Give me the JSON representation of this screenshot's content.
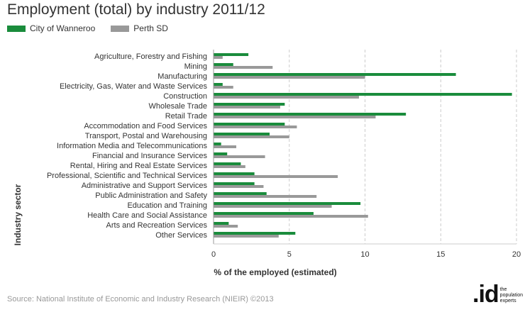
{
  "title": "Employment (total) by industry 2011/12",
  "source": "Source: National Institute of Economic and Industry Research (NIEIR) ©2013",
  "logo": {
    "mark": ".id",
    "text": "the population experts"
  },
  "colors": {
    "series1": "#1a8c3c",
    "series2": "#999999",
    "grid": "#cccccc",
    "axis": "#999999"
  },
  "chart_data": {
    "type": "bar",
    "orientation": "horizontal",
    "title": "Employment (total) by industry 2011/12",
    "xlabel": "% of the employed (estimated)",
    "ylabel": "Industry sector",
    "xlim": [
      0,
      20
    ],
    "xticks": [
      0,
      5,
      10,
      15,
      20
    ],
    "grid": true,
    "legend": "top-left",
    "categories": [
      "Agriculture, Forestry and Fishing",
      "Mining",
      "Manufacturing",
      "Electricity, Gas, Water and Waste Services",
      "Construction",
      "Wholesale Trade",
      "Retail Trade",
      "Accommodation and Food Services",
      "Transport, Postal and Warehousing",
      "Information Media and Telecommunications",
      "Financial and Insurance Services",
      "Rental, Hiring and Real Estate Services",
      "Professional, Scientific and Technical Services",
      "Administrative and Support Services",
      "Public Administration and Safety",
      "Education and Training",
      "Health Care and Social Assistance",
      "Arts and Recreation Services",
      "Other Services"
    ],
    "series": [
      {
        "name": "City of Wanneroo",
        "values": [
          2.3,
          1.3,
          16.0,
          0.6,
          19.7,
          4.7,
          12.7,
          4.7,
          3.7,
          0.5,
          0.9,
          1.8,
          2.7,
          2.7,
          3.5,
          9.7,
          6.6,
          1.0,
          5.4
        ]
      },
      {
        "name": "Perth SD",
        "values": [
          0.6,
          3.9,
          10.0,
          1.3,
          9.6,
          4.4,
          10.7,
          5.5,
          5.0,
          1.5,
          3.4,
          2.1,
          8.2,
          3.3,
          6.8,
          7.8,
          10.2,
          1.6,
          4.3
        ]
      }
    ]
  }
}
